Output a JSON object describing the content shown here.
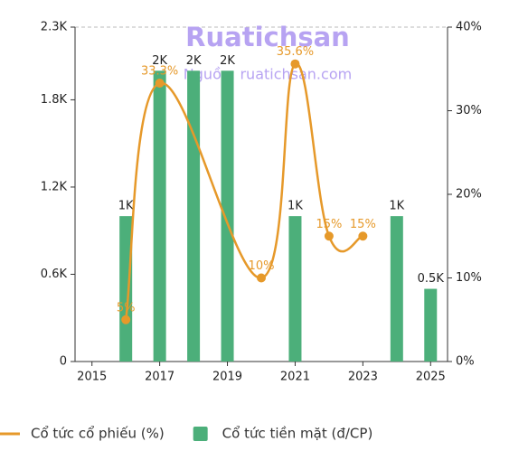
{
  "chart_data": {
    "type": "bar",
    "watermark": "Ruatichsan",
    "watermark_source": "Nguồn: ruatichsan.com",
    "xlim": [
      2014.5,
      2025.5
    ],
    "xticks": [
      2015,
      2017,
      2019,
      2021,
      2023,
      2025
    ],
    "ylim": [
      0,
      2300
    ],
    "yticks": [
      0,
      {
        "value": 600,
        "label": "0.6K"
      },
      {
        "value": 1200,
        "label": "1.2K"
      },
      {
        "value": 1800,
        "label": "1.8K"
      },
      {
        "value": 2300,
        "label": "2.3K"
      }
    ],
    "y2lim": [
      0,
      40
    ],
    "y2ticks": [
      {
        "value": 0,
        "label": "0%"
      },
      {
        "value": 10,
        "label": "10%"
      },
      {
        "value": 20,
        "label": "20%"
      },
      {
        "value": 30,
        "label": "30%"
      },
      {
        "value": 40,
        "label": "40%"
      }
    ],
    "legend": "bottom",
    "series": [
      {
        "name": "Cổ tức tiền mặt (đ/CP)",
        "type": "bar",
        "color": "#4caf7a",
        "x": [
          2016,
          2017,
          2018,
          2019,
          2021,
          2024,
          2025
        ],
        "values": [
          1000,
          2000,
          2000,
          2000,
          1000,
          1000,
          500
        ],
        "value_labels": [
          "1K",
          "2K",
          "2K",
          "2K",
          "1K",
          "1K",
          "0.5K"
        ]
      },
      {
        "name": "Cổ tức cổ phiếu (%)",
        "type": "line",
        "axis": "y2",
        "color": "#e6992a",
        "x": [
          2016,
          2017,
          2020,
          2021,
          2022,
          2023
        ],
        "values": [
          5,
          33.3,
          10,
          35.6,
          15,
          15
        ],
        "value_labels": [
          "5%",
          "33.3%",
          "10%",
          "35.6%",
          "15%",
          "15%"
        ]
      }
    ]
  }
}
